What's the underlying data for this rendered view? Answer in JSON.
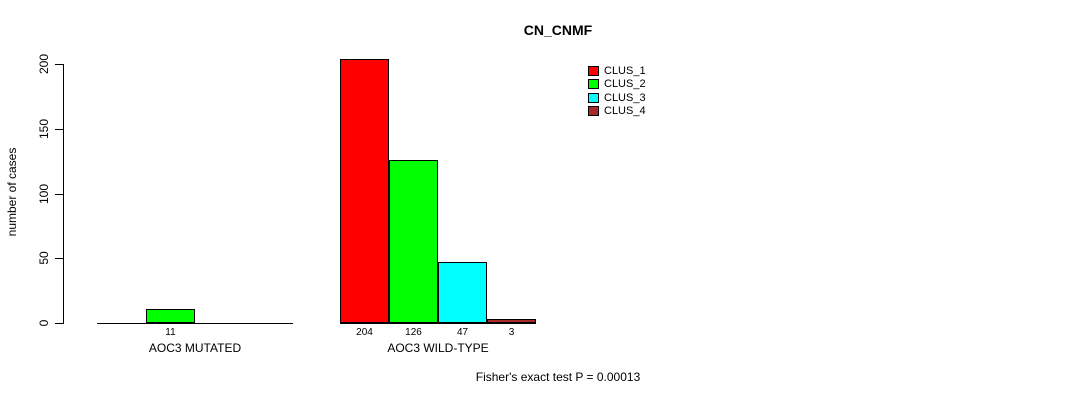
{
  "page": {
    "background": "#FFFFFF",
    "text_color": "#000000"
  },
  "chart_data": {
    "type": "bar",
    "title": "CN_CNMF",
    "ylabel": "number of cases",
    "xlabel": "",
    "ylim": [
      0,
      200
    ],
    "yticks": [
      0,
      50,
      100,
      150,
      200
    ],
    "grid": false,
    "legend_position": "top-right",
    "show_value_labels": true,
    "categories": [
      "AOC3 MUTATED",
      "AOC3 WILD-TYPE"
    ],
    "series": [
      {
        "name": "CLUS_1",
        "color": "#FF0000",
        "values": [
          0,
          204
        ]
      },
      {
        "name": "CLUS_2",
        "color": "#00FF00",
        "values": [
          11,
          126
        ]
      },
      {
        "name": "CLUS_3",
        "color": "#00FFFF",
        "values": [
          0,
          47
        ]
      },
      {
        "name": "CLUS_4",
        "color": "#A52A2A",
        "values": [
          0,
          3
        ]
      }
    ],
    "visible_value_labels": [
      "11",
      "204",
      "126",
      "47",
      "3"
    ],
    "annotation": "Fisher's exact test P = 0.00013"
  }
}
